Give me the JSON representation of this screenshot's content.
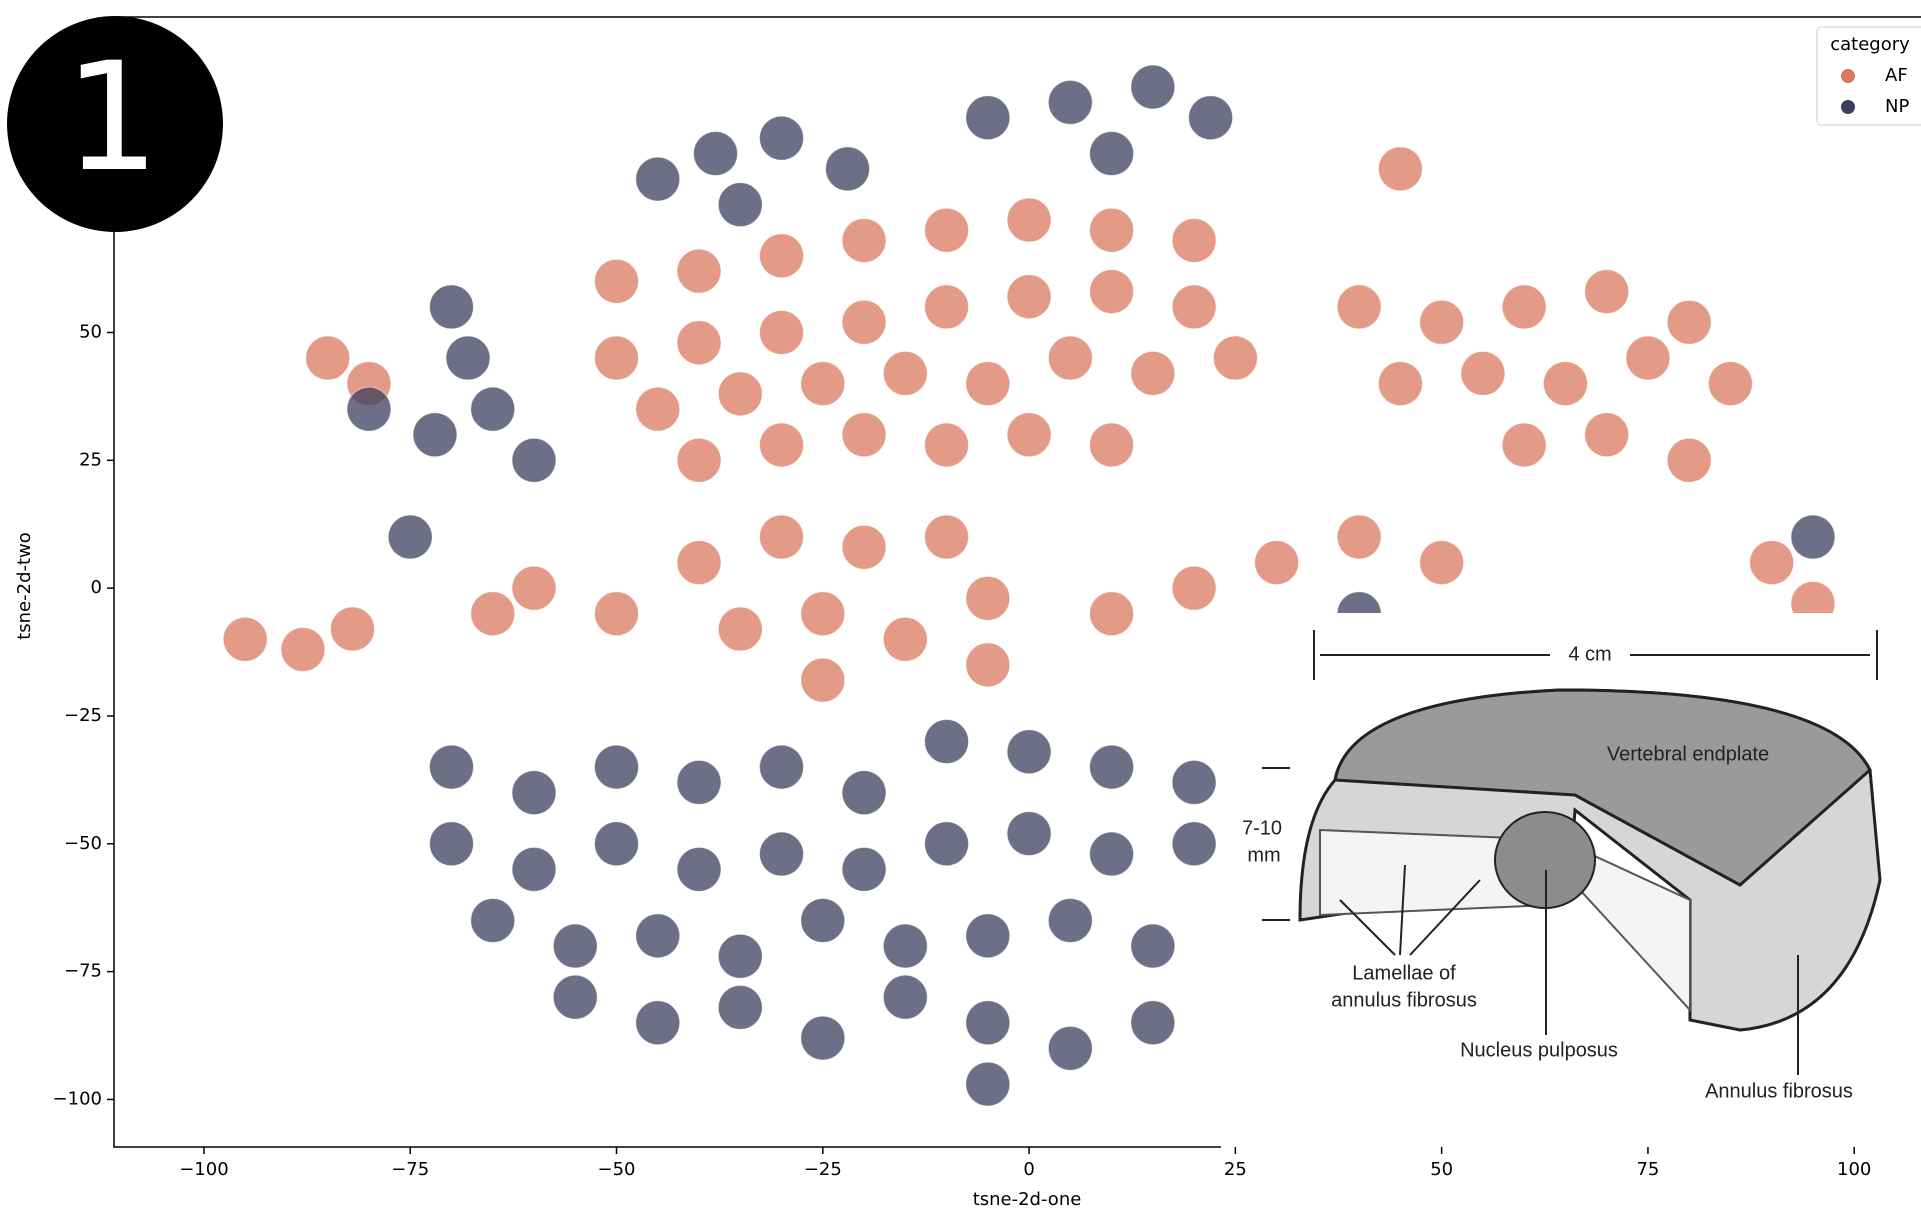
{
  "badge": "1",
  "chart_data": {
    "type": "scatter",
    "x_label": "tsne-2d-one",
    "y_label": "tsne-2d-two",
    "legend_title": "category",
    "legend": "upper right",
    "xlim": [
      -110.9,
      108.7
    ],
    "ylim": [
      -109.3,
      111.7
    ],
    "xticks": [
      {
        "value": -100,
        "label": "−100"
      },
      {
        "value": -75,
        "label": "−75"
      },
      {
        "value": -50,
        "label": "−50"
      },
      {
        "value": -25,
        "label": "−25"
      },
      0,
      25,
      50,
      75,
      100
    ],
    "yticks": [
      {
        "value": -100,
        "label": "−100"
      },
      {
        "value": -75,
        "label": "−75"
      },
      {
        "value": -50,
        "label": "−50"
      },
      {
        "value": -25,
        "label": "−25"
      },
      0,
      25,
      50
    ],
    "series": [
      {
        "name": "AF",
        "color": "#d9785f",
        "x": [
          -50,
          -40,
          -30,
          -20,
          -10,
          0,
          10,
          20,
          -50,
          -40,
          -30,
          -20,
          -10,
          0,
          10,
          20,
          -45,
          -35,
          -25,
          -15,
          -5,
          5,
          15,
          25,
          -40,
          -30,
          -20,
          -10,
          0,
          10,
          40,
          50,
          60,
          70,
          80,
          45,
          55,
          65,
          75,
          85,
          60,
          70,
          80,
          -40,
          -30,
          -20,
          -10,
          -35,
          -25,
          -15,
          -5,
          -60,
          -50,
          -65,
          10,
          20,
          30,
          40,
          50,
          -95,
          -88,
          -82,
          -85,
          -80,
          45,
          90,
          95,
          -5,
          -25
        ],
        "y": [
          60,
          62,
          65,
          68,
          70,
          72,
          70,
          68,
          45,
          48,
          50,
          52,
          55,
          57,
          58,
          55,
          35,
          38,
          40,
          42,
          40,
          45,
          42,
          45,
          25,
          28,
          30,
          28,
          30,
          28,
          55,
          52,
          55,
          58,
          52,
          40,
          42,
          40,
          45,
          40,
          28,
          30,
          25,
          5,
          10,
          8,
          10,
          -8,
          -5,
          -10,
          -2,
          0,
          -5,
          -5,
          -5,
          0,
          5,
          10,
          5,
          -10,
          -12,
          -8,
          45,
          40,
          82,
          5,
          -3,
          -15,
          -18
        ]
      },
      {
        "name": "NP",
        "color": "#3c3f5e",
        "x": [
          -45,
          -38,
          -30,
          -22,
          -35,
          -5,
          5,
          15,
          22,
          10,
          -70,
          -68,
          -65,
          -60,
          -72,
          -70,
          -60,
          -50,
          -40,
          -30,
          -20,
          -10,
          0,
          10,
          20,
          -70,
          -60,
          -50,
          -40,
          -30,
          -20,
          -10,
          0,
          10,
          20,
          -65,
          -55,
          -45,
          -35,
          -25,
          -15,
          -5,
          5,
          15,
          -55,
          -45,
          -35,
          -25,
          -15,
          -5,
          5,
          15,
          -5,
          -75,
          -80,
          40,
          95
        ],
        "y": [
          80,
          85,
          88,
          82,
          75,
          92,
          95,
          98,
          92,
          85,
          55,
          45,
          35,
          25,
          30,
          -35,
          -40,
          -35,
          -38,
          -35,
          -40,
          -30,
          -32,
          -35,
          -38,
          -50,
          -55,
          -50,
          -55,
          -52,
          -55,
          -50,
          -48,
          -52,
          -50,
          -65,
          -70,
          -68,
          -72,
          -65,
          -70,
          -68,
          -65,
          -70,
          -80,
          -85,
          -82,
          -88,
          -80,
          -85,
          -90,
          -85,
          -97,
          10,
          35,
          -5,
          10
        ]
      }
    ]
  },
  "inset": {
    "width": "4 cm",
    "endplate": "Vertebral endplate",
    "height_1": "7-10",
    "height_2": "mm",
    "lamellae_1": "Lamellae of",
    "lamellae_2": "annulus fibrosus",
    "nucleus": "Nucleus pulposus",
    "annulus": "Annulus fibrosus"
  }
}
